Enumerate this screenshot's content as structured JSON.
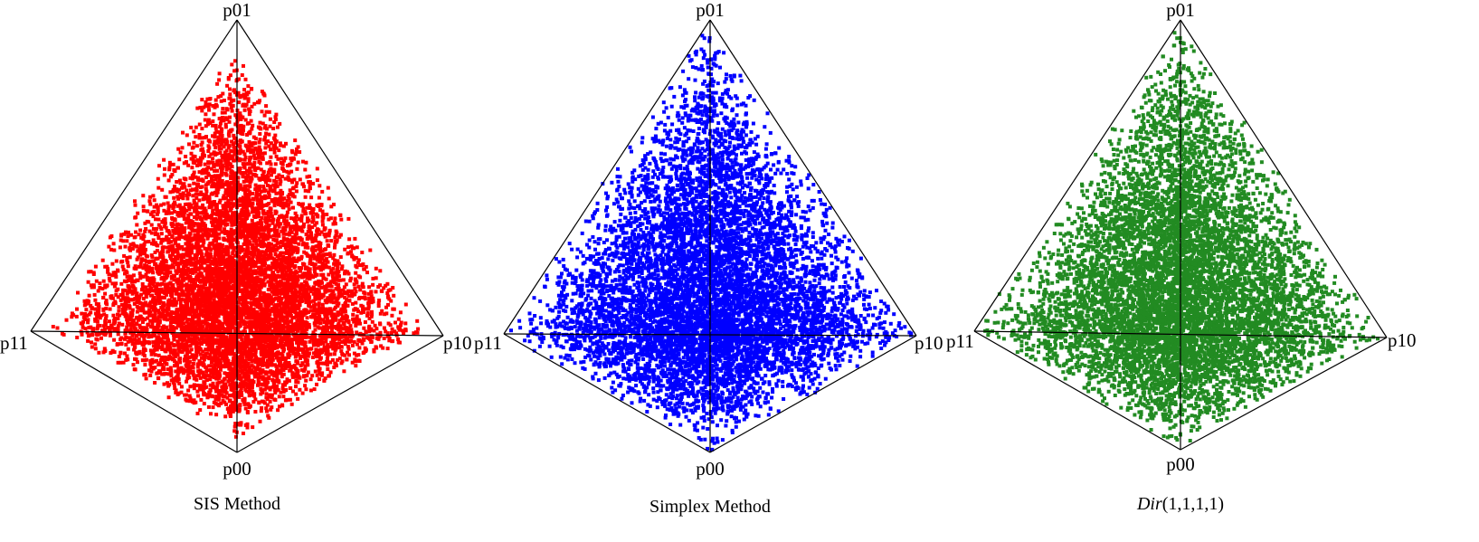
{
  "chart_data": [
    {
      "type": "scatter",
      "projection": "tetrahedron (4-simplex) projected to 2D",
      "caption": "SIS Method",
      "caption_style": "normal",
      "vertex_labels": {
        "top": "p01",
        "left": "p11",
        "right": "p10",
        "bottom": "p00"
      },
      "color": "#ff0000",
      "distribution": "dense, concentrated toward the center-lower region of the simplex",
      "approx_points": 8000,
      "seed": 11,
      "spread": 0.92
    },
    {
      "type": "scatter",
      "projection": "tetrahedron (4-simplex) projected to 2D",
      "caption": "Simplex Method",
      "caption_style": "normal",
      "vertex_labels": {
        "top": "p01",
        "left": "p11",
        "right": "p10",
        "bottom": "p00"
      },
      "color": "#0000ff",
      "distribution": "uniform over the simplex",
      "approx_points": 8000,
      "seed": 23,
      "spread": 1.0
    },
    {
      "type": "scatter",
      "projection": "tetrahedron (4-simplex) projected to 2D",
      "caption": "Dir",
      "caption_args": "(1,1,1,1)",
      "caption_style": "italic",
      "vertex_labels": {
        "top": "p01",
        "left": "p11",
        "right": "p10",
        "bottom": "p00"
      },
      "color": "#228b22",
      "distribution": "uniform over the simplex (Dirichlet(1,1,1,1))",
      "approx_points": 8000,
      "seed": 37,
      "spread": 1.0
    }
  ]
}
